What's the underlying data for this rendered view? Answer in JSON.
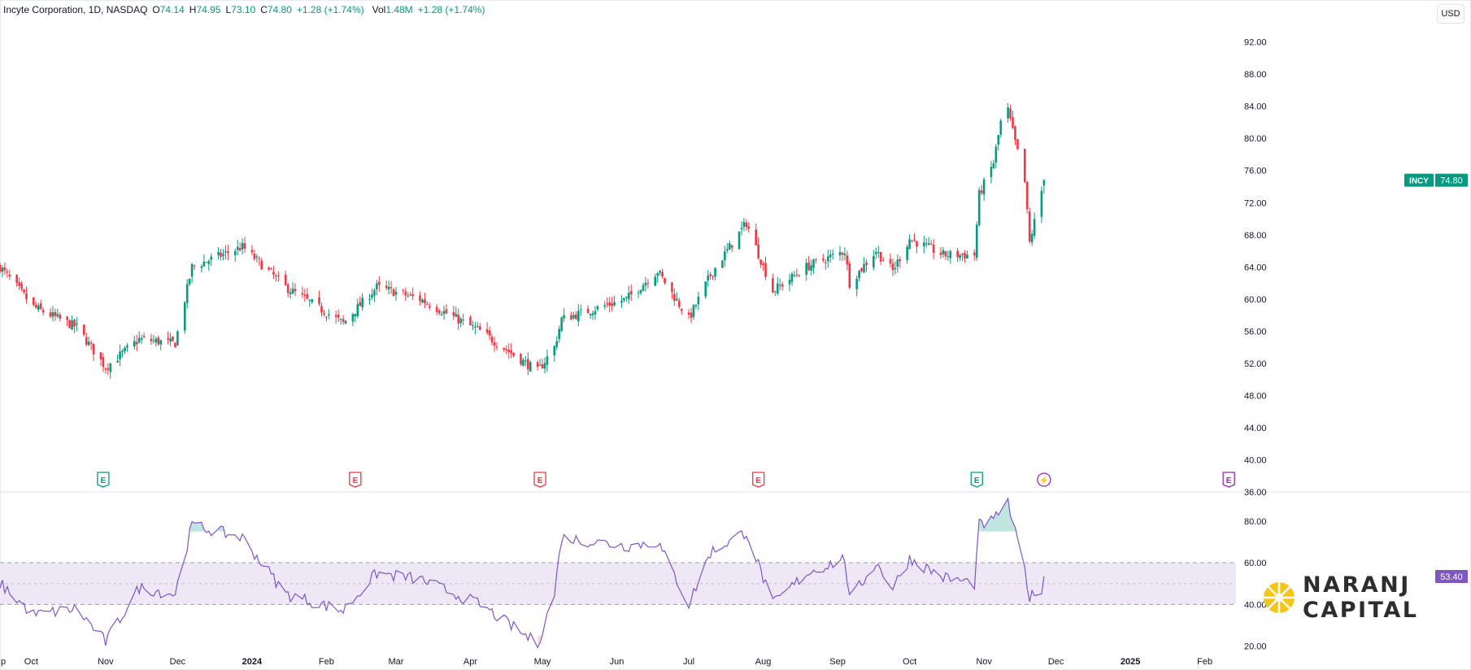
{
  "legend": {
    "symbol": "Incyte Corporation, 1D, NASDAQ",
    "open_label": "O",
    "open": "74.14",
    "high_label": "H",
    "high": "74.95",
    "low_label": "L",
    "low": "73.10",
    "close_label": "C",
    "close": "74.80",
    "change": "+1.28 (+1.74%)",
    "vol_label": "Vol",
    "vol": "1.48M",
    "vol_change": "+1.28 (+1.74%)"
  },
  "currency_button": "USD",
  "ticker_badge": {
    "label": "INCY",
    "value": "74.80"
  },
  "rsi_badge": "53.40",
  "watermark": {
    "line1": "NARANJ",
    "line2": "CAPITAL"
  },
  "colors": {
    "up": "#089981",
    "down": "#f23645",
    "rsi": "#7e57c2",
    "band": "#ede7f6",
    "grid_text": "#131722"
  },
  "chart_data": [
    {
      "type": "candlestick",
      "title": "Incyte Corporation, 1D, NASDAQ",
      "ylim": [
        36,
        95
      ],
      "y_ticks": [
        "92.00",
        "88.00",
        "84.00",
        "80.00",
        "76.00",
        "72.00",
        "68.00",
        "64.00",
        "60.00",
        "56.00",
        "52.00",
        "48.00",
        "44.00",
        "40.00",
        "36.00"
      ],
      "x_ticks": [
        "p",
        "Oct",
        "Nov",
        "Dec",
        "2024",
        "Feb",
        "Mar",
        "Apr",
        "May",
        "Jun",
        "Jul",
        "Aug",
        "Sep",
        "Oct",
        "Nov",
        "Dec",
        "2025",
        "Feb"
      ],
      "x_range": [
        "2023-09-18",
        "2025-02-14"
      ],
      "date_anchors": [
        {
          "date": "2023-09-18",
          "close": 64.0
        },
        {
          "date": "2023-10-02",
          "close": 59.0
        },
        {
          "date": "2023-10-20",
          "close": 56.5
        },
        {
          "date": "2023-11-01",
          "close": 51.5
        },
        {
          "date": "2023-11-15",
          "close": 55.0
        },
        {
          "date": "2023-11-30",
          "close": 54.5
        },
        {
          "date": "2023-12-07",
          "close": 64.0
        },
        {
          "date": "2023-12-28",
          "close": 66.5
        },
        {
          "date": "2024-01-15",
          "close": 61.5
        },
        {
          "date": "2024-02-08",
          "close": 57.0
        },
        {
          "date": "2024-02-22",
          "close": 61.5
        },
        {
          "date": "2024-03-11",
          "close": 60.0
        },
        {
          "date": "2024-04-05",
          "close": 56.0
        },
        {
          "date": "2024-04-29",
          "close": 51.0
        },
        {
          "date": "2024-05-06",
          "close": 54.0
        },
        {
          "date": "2024-05-09",
          "close": 57.5
        },
        {
          "date": "2024-06-05",
          "close": 60.0
        },
        {
          "date": "2024-06-18",
          "close": 63.5
        },
        {
          "date": "2024-07-01",
          "close": 57.5
        },
        {
          "date": "2024-07-10",
          "close": 63.0
        },
        {
          "date": "2024-07-25",
          "close": 69.5
        },
        {
          "date": "2024-08-05",
          "close": 61.0
        },
        {
          "date": "2024-08-19",
          "close": 64.0
        },
        {
          "date": "2024-09-04",
          "close": 66.0
        },
        {
          "date": "2024-09-06",
          "close": 62.0
        },
        {
          "date": "2024-09-17",
          "close": 66.0
        },
        {
          "date": "2024-09-24",
          "close": 63.5
        },
        {
          "date": "2024-10-01",
          "close": 67.5
        },
        {
          "date": "2024-10-15",
          "close": 65.5
        },
        {
          "date": "2024-10-28",
          "close": 65.5
        },
        {
          "date": "2024-10-30",
          "close": 73.0
        },
        {
          "date": "2024-11-05",
          "close": 77.0
        },
        {
          "date": "2024-11-08",
          "close": 82.0
        },
        {
          "date": "2024-11-11",
          "close": 83.5
        },
        {
          "date": "2024-11-14",
          "close": 79.5
        },
        {
          "date": "2024-11-18",
          "close": 74.5
        },
        {
          "date": "2024-11-20",
          "close": 67.0
        },
        {
          "date": "2024-11-25",
          "close": 73.5
        },
        {
          "date": "2024-11-26",
          "close": 74.8
        }
      ],
      "last": {
        "date": "2024-11-26",
        "open": 74.14,
        "high": 74.95,
        "low": 73.1,
        "close": 74.8
      },
      "event_markers": [
        {
          "date": "2023-10-31",
          "label": "E",
          "kind": "earnings-beat"
        },
        {
          "date": "2024-02-13",
          "label": "E",
          "kind": "earnings-miss"
        },
        {
          "date": "2024-04-30",
          "label": "E",
          "kind": "earnings-miss"
        },
        {
          "date": "2024-07-30",
          "label": "E",
          "kind": "earnings-miss"
        },
        {
          "date": "2024-10-29",
          "label": "E",
          "kind": "earnings-beat"
        },
        {
          "date": "2024-11-26",
          "label": "⚡",
          "kind": "event"
        },
        {
          "date": "2025-02-11",
          "label": "E",
          "kind": "earnings-upcoming"
        }
      ]
    },
    {
      "type": "line",
      "title": "RSI",
      "ylim": [
        14,
        92
      ],
      "y_ticks": [
        "80.00",
        "60.00",
        "40.00",
        "20.00"
      ],
      "band": [
        40,
        60
      ],
      "midline": 50,
      "x_range": [
        "2023-09-18",
        "2025-02-14"
      ],
      "date_anchors": [
        {
          "date": "2023-09-18",
          "value": 50
        },
        {
          "date": "2023-10-02",
          "value": 35
        },
        {
          "date": "2023-10-20",
          "value": 38
        },
        {
          "date": "2023-11-01",
          "value": 22
        },
        {
          "date": "2023-11-15",
          "value": 48
        },
        {
          "date": "2023-11-30",
          "value": 45
        },
        {
          "date": "2023-12-07",
          "value": 78
        },
        {
          "date": "2023-12-28",
          "value": 72
        },
        {
          "date": "2024-01-15",
          "value": 45
        },
        {
          "date": "2024-02-08",
          "value": 37
        },
        {
          "date": "2024-02-22",
          "value": 55
        },
        {
          "date": "2024-03-11",
          "value": 52
        },
        {
          "date": "2024-04-05",
          "value": 40
        },
        {
          "date": "2024-04-29",
          "value": 21
        },
        {
          "date": "2024-05-06",
          "value": 45
        },
        {
          "date": "2024-05-09",
          "value": 72
        },
        {
          "date": "2024-06-05",
          "value": 68
        },
        {
          "date": "2024-06-18",
          "value": 70
        },
        {
          "date": "2024-07-01",
          "value": 40
        },
        {
          "date": "2024-07-10",
          "value": 65
        },
        {
          "date": "2024-07-25",
          "value": 75
        },
        {
          "date": "2024-08-05",
          "value": 40
        },
        {
          "date": "2024-08-19",
          "value": 55
        },
        {
          "date": "2024-09-04",
          "value": 62
        },
        {
          "date": "2024-09-06",
          "value": 42
        },
        {
          "date": "2024-09-17",
          "value": 60
        },
        {
          "date": "2024-09-24",
          "value": 48
        },
        {
          "date": "2024-10-01",
          "value": 62
        },
        {
          "date": "2024-10-15",
          "value": 53
        },
        {
          "date": "2024-10-28",
          "value": 50
        },
        {
          "date": "2024-10-30",
          "value": 78
        },
        {
          "date": "2024-11-05",
          "value": 80
        },
        {
          "date": "2024-11-08",
          "value": 86
        },
        {
          "date": "2024-11-11",
          "value": 88
        },
        {
          "date": "2024-11-14",
          "value": 74
        },
        {
          "date": "2024-11-18",
          "value": 57
        },
        {
          "date": "2024-11-20",
          "value": 43
        },
        {
          "date": "2024-11-25",
          "value": 48
        },
        {
          "date": "2024-11-26",
          "value": 53.4
        }
      ]
    }
  ]
}
